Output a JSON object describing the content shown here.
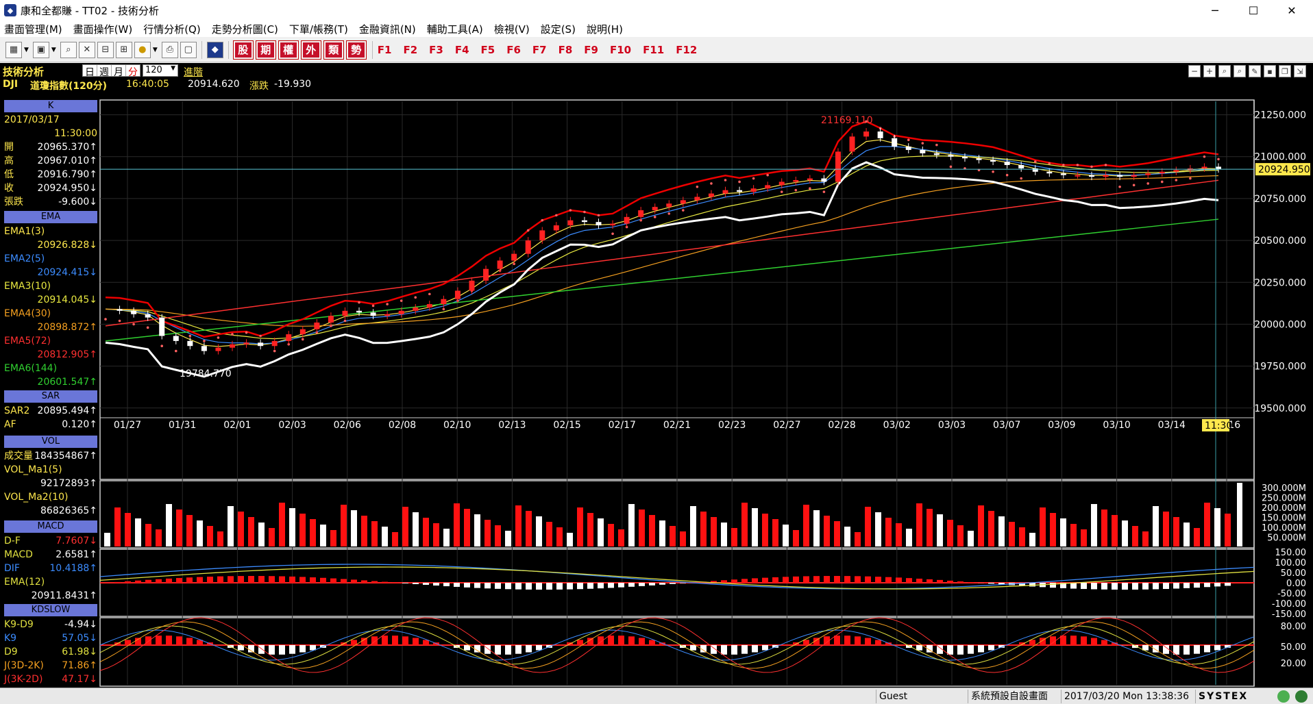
{
  "window": {
    "title": "康和全都賺 - TT02 - 技術分析",
    "minimize": "─",
    "maximize": "☐",
    "close": "✕"
  },
  "menu": [
    "畫面管理(M)",
    "畫面操作(W)",
    "行情分析(Q)",
    "走勢分析圖(C)",
    "下單/帳務(T)",
    "金融資訊(N)",
    "輔助工具(A)",
    "檢視(V)",
    "設定(S)",
    "說明(H)"
  ],
  "toolbar": {
    "red_buttons": [
      "股",
      "期",
      "權",
      "外",
      "類",
      "勢"
    ],
    "fkeys": [
      "F1",
      "F2",
      "F3",
      "F4",
      "F5",
      "F6",
      "F7",
      "F8",
      "F9",
      "F10",
      "F11",
      "F12"
    ]
  },
  "header": {
    "title": "技術分析",
    "periods": [
      "日",
      "週",
      "月",
      "分"
    ],
    "count": "120",
    "advanced": "進階",
    "symbol": "DJI",
    "name": "道瓊指數(120分)",
    "time": "16:40:05",
    "price": "20914.620",
    "change_label": "漲跌",
    "change": "-19.930"
  },
  "kpanel": {
    "label": "K",
    "date": "2017/03/17",
    "time": "11:30:00",
    "rows": [
      {
        "k": "開",
        "v": "20965.370↑"
      },
      {
        "k": "高",
        "v": "20967.010↑"
      },
      {
        "k": "低",
        "v": "20916.790↑"
      },
      {
        "k": "收",
        "v": "20924.950↓"
      },
      {
        "k": "張跌",
        "v": "-9.600↓"
      }
    ]
  },
  "ema": {
    "label": "EMA",
    "rows": [
      {
        "k": "EMA1(3)",
        "v": "20926.828↓",
        "color": "#ffe84d"
      },
      {
        "k": "EMA2(5)",
        "v": "20924.415↓",
        "color": "#3c8cff"
      },
      {
        "k": "EMA3(10)",
        "v": "20914.045↓",
        "color": "#e8e840"
      },
      {
        "k": "EMA4(30)",
        "v": "20898.872↑",
        "color": "#f5a020"
      },
      {
        "k": "EMA5(72)",
        "v": "20812.905↑",
        "color": "#ff3030"
      },
      {
        "k": "EMA6(144)",
        "v": "20601.547↑",
        "color": "#30d030"
      }
    ]
  },
  "sar": {
    "label": "SAR",
    "rows": [
      {
        "k": "SAR2",
        "v": "20895.494↑"
      },
      {
        "k": "AF",
        "v": "0.120↑"
      }
    ]
  },
  "vol": {
    "label": "VOL",
    "rows": [
      {
        "k": "成交量",
        "v": "184354867↑"
      },
      {
        "k": "VOL_Ma1(5)",
        "v": ""
      },
      {
        "k": "",
        "v": "92172893↑"
      },
      {
        "k": "VOL_Ma2(10)",
        "v": ""
      },
      {
        "k": "",
        "v": "86826365↑"
      }
    ]
  },
  "macd": {
    "label": "MACD",
    "rows": [
      {
        "k": "D-F",
        "v": "7.7607↓",
        "kc": "#e0e040",
        "vc": "#ff3030"
      },
      {
        "k": "MACD",
        "v": "2.6581↑",
        "kc": "#e0e040",
        "vc": "#ffffff"
      },
      {
        "k": "DIF",
        "v": "10.4188↑",
        "kc": "#3c8cff",
        "vc": "#3c8cff"
      },
      {
        "k": "EMA(12)",
        "v": "",
        "kc": "#e0e040",
        "vc": "#fff"
      },
      {
        "k": "",
        "v": "20911.8431↑",
        "kc": "#fff",
        "vc": "#ffffff"
      }
    ]
  },
  "kd": {
    "label": "KDSLOW",
    "rows": [
      {
        "k": "K9-D9",
        "v": "-4.94↓",
        "kc": "#e0e040",
        "vc": "#fff"
      },
      {
        "k": "K9",
        "v": "57.05↓",
        "kc": "#3c8cff",
        "vc": "#3c8cff"
      },
      {
        "k": "D9",
        "v": "61.98↓",
        "kc": "#e0e040",
        "vc": "#e0e040"
      },
      {
        "k": "J(3D-2K)",
        "v": "71.86↑",
        "kc": "#f5a020",
        "vc": "#f5a020"
      },
      {
        "k": "J(3K-2D)",
        "v": "47.17↓",
        "kc": "#ff3030",
        "vc": "#ff3030"
      }
    ]
  },
  "chart_data": {
    "type": "line",
    "title": "",
    "price_axis": [
      "21250.000",
      "21000.000",
      "20750.000",
      "20500.000",
      "20250.000",
      "20000.000",
      "19750.000",
      "19500.000"
    ],
    "ylim": [
      19450,
      21330
    ],
    "dates": [
      "01/27",
      "01/31",
      "02/01",
      "02/03",
      "02/06",
      "02/08",
      "02/10",
      "02/13",
      "02/15",
      "02/17",
      "02/21",
      "02/23",
      "02/27",
      "02/28",
      "03/02",
      "03/03",
      "03/07",
      "03/09",
      "03/10",
      "03/14",
      "03/16"
    ],
    "cursor_time": "11:30",
    "current_price": "20924.950",
    "high_label": "21169.110",
    "low_label": "19784.770",
    "close_series": [
      20090,
      20080,
      20060,
      20040,
      19930,
      19900,
      19870,
      19840,
      19860,
      19880,
      19890,
      19870,
      19900,
      19940,
      19970,
      20010,
      20050,
      20080,
      20070,
      20050,
      20060,
      20080,
      20100,
      20120,
      20150,
      20200,
      20260,
      20330,
      20380,
      20420,
      20500,
      20560,
      20590,
      20620,
      20610,
      20590,
      20600,
      20640,
      20680,
      20700,
      20720,
      20740,
      20760,
      20780,
      20800,
      20790,
      20810,
      20830,
      20850,
      20860,
      20870,
      20850,
      21030,
      21120,
      21150,
      21110,
      21060,
      21040,
      21020,
      21010,
      21000,
      20990,
      20980,
      20970,
      20950,
      20930,
      20910,
      20900,
      20890,
      20890,
      20880,
      20890,
      20880,
      20890,
      20900,
      20910,
      20920,
      20930,
      20940,
      20925
    ],
    "vol_axis": [
      "300.000M",
      "250.000M",
      "200.000M",
      "150.000M",
      "100.000M",
      "50.000M"
    ],
    "macd_axis": [
      "150.00",
      "100.00",
      "50.00",
      "0.00",
      "-50.00",
      "-100.00",
      "-150.00"
    ],
    "kd_axis": [
      "80.00",
      "50.00",
      "20.00"
    ]
  },
  "status": {
    "user": "Guest",
    "layout": "系統預設自設畫面",
    "datetime": "2017/03/20 Mon 13:38:36",
    "brand": "SYSTEX"
  }
}
